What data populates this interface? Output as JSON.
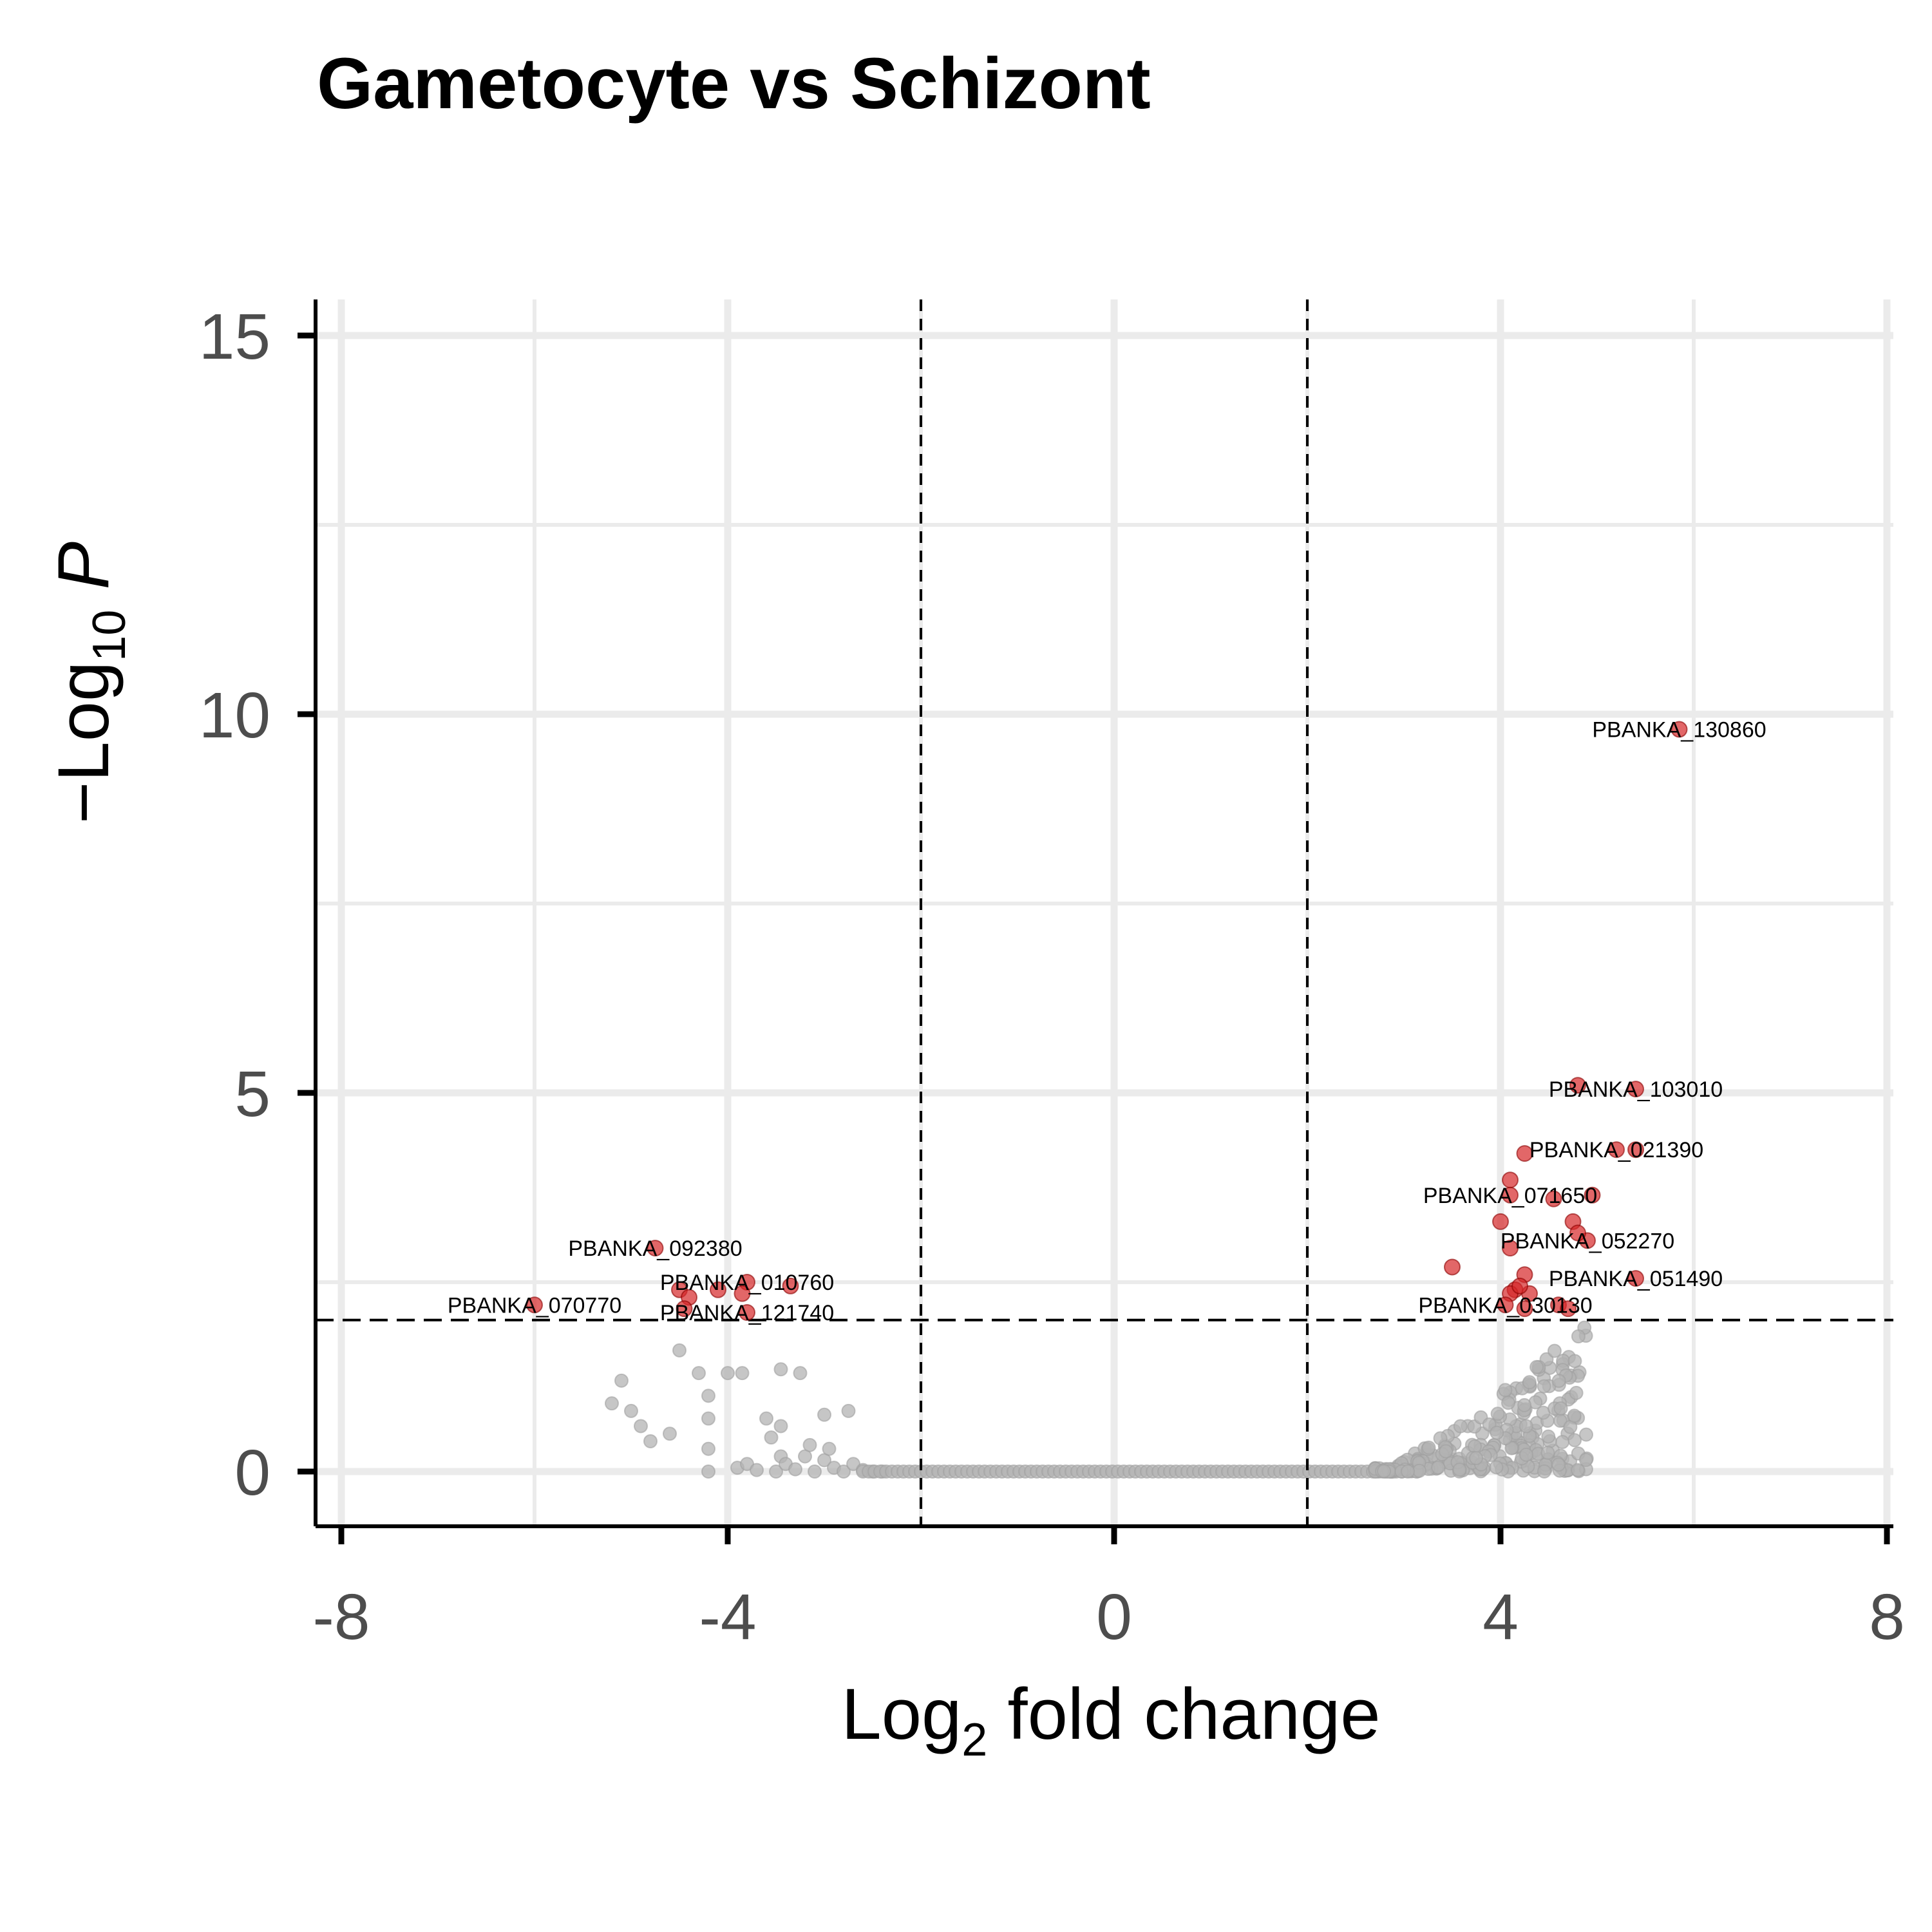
{
  "chart_data": {
    "type": "scatter",
    "title": "Gametocyte vs Schizont",
    "xlabel": {
      "prefix": "Log",
      "sub": "2",
      "suffix": " fold change"
    },
    "ylabel": {
      "prefix": "−Log",
      "sub": "10",
      "suffix": " P"
    },
    "xlim": [
      -8,
      8
    ],
    "ylim": [
      -0.7,
      15.5
    ],
    "x_ticks": [
      -8,
      -4,
      0,
      4,
      8
    ],
    "x_tick_labels": [
      "-8",
      "-4",
      "0",
      "4",
      "8"
    ],
    "y_ticks": [
      0,
      5,
      10,
      15
    ],
    "y_tick_labels": [
      "0",
      "5",
      "10",
      "15"
    ],
    "grid": true,
    "thresholds": {
      "log2fc": [
        -2,
        2
      ],
      "neg_log10_p": 2
    },
    "colors": {
      "significant": "#d62728",
      "nonsignificant": "#b3b3b3",
      "grid": "#ebebeb",
      "axis": "#000000"
    },
    "significant_points": [
      {
        "x": 5.85,
        "y": 9.8,
        "label": "PBANKA_130860"
      },
      {
        "x": 5.4,
        "y": 5.05,
        "label": "PBANKA_103010"
      },
      {
        "x": 4.8,
        "y": 5.1
      },
      {
        "x": 5.2,
        "y": 4.25,
        "label": "PBANKA_021390"
      },
      {
        "x": 5.4,
        "y": 4.25
      },
      {
        "x": 4.25,
        "y": 4.2
      },
      {
        "x": 4.1,
        "y": 3.85
      },
      {
        "x": 4.1,
        "y": 3.65,
        "label": "PBANKA_071650"
      },
      {
        "x": 4.55,
        "y": 3.6
      },
      {
        "x": 4.95,
        "y": 3.65
      },
      {
        "x": 4.0,
        "y": 3.3
      },
      {
        "x": 4.75,
        "y": 3.3
      },
      {
        "x": 4.9,
        "y": 3.05,
        "label": "PBANKA_052270"
      },
      {
        "x": 4.8,
        "y": 3.15
      },
      {
        "x": 4.1,
        "y": 2.95
      },
      {
        "x": 3.5,
        "y": 2.7
      },
      {
        "x": 5.4,
        "y": 2.55,
        "label": "PBANKA_051490"
      },
      {
        "x": 4.25,
        "y": 2.6
      },
      {
        "x": 4.3,
        "y": 2.35
      },
      {
        "x": 4.15,
        "y": 2.4
      },
      {
        "x": 4.1,
        "y": 2.35
      },
      {
        "x": 4.2,
        "y": 2.45
      },
      {
        "x": 4.05,
        "y": 2.2,
        "label": "PBANKA_030130"
      },
      {
        "x": 4.25,
        "y": 2.15
      },
      {
        "x": 4.6,
        "y": 2.2
      },
      {
        "x": 4.7,
        "y": 2.15
      },
      {
        "x": -4.75,
        "y": 2.95,
        "label": "PBANKA_092380"
      },
      {
        "x": -3.8,
        "y": 2.5,
        "label": "PBANKA_010760"
      },
      {
        "x": -3.35,
        "y": 2.45
      },
      {
        "x": -4.5,
        "y": 2.4
      },
      {
        "x": -4.4,
        "y": 2.3
      },
      {
        "x": -4.1,
        "y": 2.4
      },
      {
        "x": -3.85,
        "y": 2.35
      },
      {
        "x": -4.45,
        "y": 2.15
      },
      {
        "x": -3.8,
        "y": 2.1,
        "label": "PBANKA_121740"
      },
      {
        "x": -6.0,
        "y": 2.2,
        "label": "PBANKA_070770"
      }
    ],
    "nonsignificant_points": [
      [
        -5.2,
        0.9
      ],
      [
        -5.1,
        1.2
      ],
      [
        -5.0,
        0.8
      ],
      [
        -4.9,
        0.6
      ],
      [
        -4.8,
        0.4
      ],
      [
        -4.6,
        0.5
      ],
      [
        -4.5,
        1.6
      ],
      [
        -4.3,
        1.3
      ],
      [
        -4.2,
        1.0
      ],
      [
        -4.2,
        0.7
      ],
      [
        -4.2,
        0.3
      ],
      [
        -4.2,
        0.0
      ],
      [
        -4.0,
        1.3
      ],
      [
        -3.85,
        1.3
      ],
      [
        -3.6,
        0.7
      ],
      [
        -3.45,
        1.35
      ],
      [
        -3.45,
        0.6
      ],
      [
        -3.45,
        0.2
      ],
      [
        -3.25,
        1.3
      ],
      [
        -3.0,
        0.75
      ],
      [
        -2.75,
        0.8
      ],
      [
        -3.9,
        0.05
      ],
      [
        -3.8,
        0.1
      ],
      [
        -3.7,
        0.02
      ],
      [
        -3.5,
        0.0
      ],
      [
        -3.4,
        0.1
      ],
      [
        -3.3,
        0.03
      ],
      [
        -3.2,
        0.2
      ],
      [
        -3.1,
        0.0
      ],
      [
        -3.0,
        0.15
      ],
      [
        -2.9,
        0.05
      ],
      [
        -2.8,
        0.0
      ],
      [
        -2.7,
        0.1
      ],
      [
        -2.6,
        0.02
      ],
      [
        -2.5,
        0.0
      ],
      [
        -2.4,
        0.0
      ],
      [
        -3.55,
        0.45
      ],
      [
        -3.15,
        0.35
      ],
      [
        -2.95,
        0.3
      ]
    ],
    "zero_band": {
      "x_from": -2.6,
      "x_to": 3.0,
      "y": 0
    },
    "scatter_cloud": {
      "x_from": 2.7,
      "x_to": 4.9,
      "max_y": 2.0,
      "count": 260
    }
  }
}
